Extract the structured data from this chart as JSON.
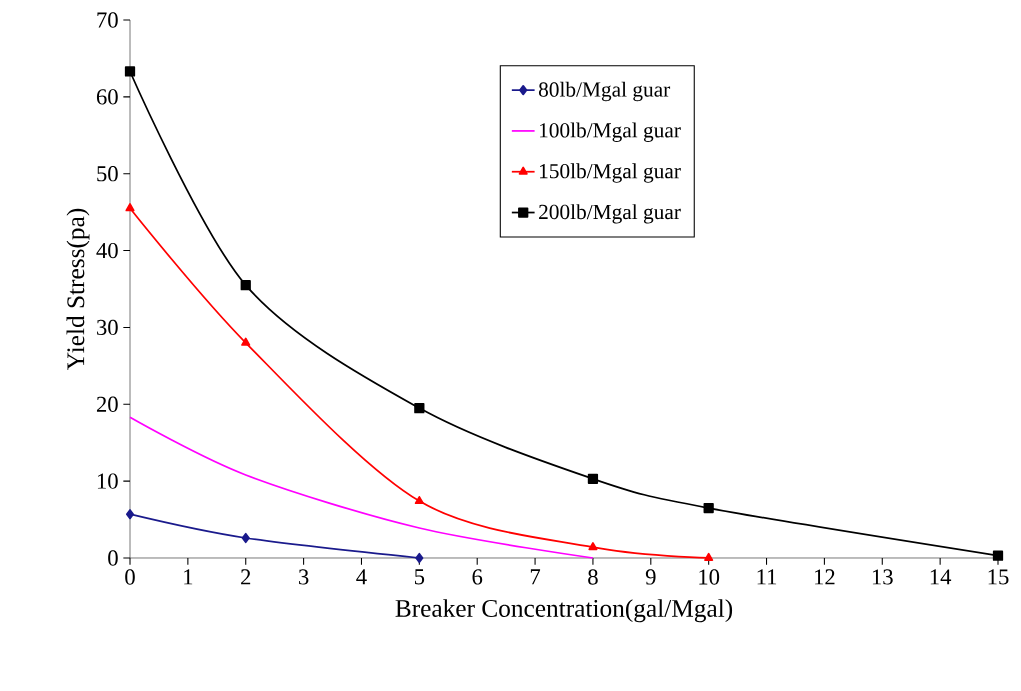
{
  "chart_data": {
    "type": "line",
    "xlabel": "Breaker Concentration(gal/Mgal)",
    "ylabel": "Yield Stress(pa)",
    "xlim": [
      0,
      15
    ],
    "xticks": [
      0,
      1,
      2,
      3,
      4,
      5,
      6,
      7,
      8,
      9,
      10,
      11,
      12,
      13,
      14,
      15
    ],
    "ylim": [
      0,
      70
    ],
    "yticks": [
      0,
      10,
      20,
      30,
      40,
      50,
      60,
      70
    ],
    "grid": false,
    "legend": "top right",
    "line_style": "solid",
    "series": [
      {
        "name": "80lb/Mgal guar",
        "color": "#1a1a8c",
        "marker": "diamond",
        "x": [
          0,
          2,
          5
        ],
        "values": [
          5.7,
          2.6,
          0
        ]
      },
      {
        "name": "100lb/Mgal guar",
        "color": "#ff00ff",
        "marker": "none",
        "x": [
          0,
          2,
          5,
          8
        ],
        "values": [
          18.3,
          10.8,
          3.9,
          0
        ]
      },
      {
        "name": "150lb/Mgal guar",
        "color": "#ff0000",
        "marker": "triangle",
        "x": [
          0,
          2,
          5,
          8,
          10
        ],
        "values": [
          45.5,
          28,
          7.4,
          1.4,
          0
        ]
      },
      {
        "name": "200lb/Mgal guar",
        "color": "#000000",
        "marker": "square",
        "x": [
          0,
          2,
          5,
          8,
          10,
          15
        ],
        "values": [
          63.3,
          35.5,
          19.5,
          10.3,
          6.5,
          0.3
        ]
      }
    ]
  }
}
